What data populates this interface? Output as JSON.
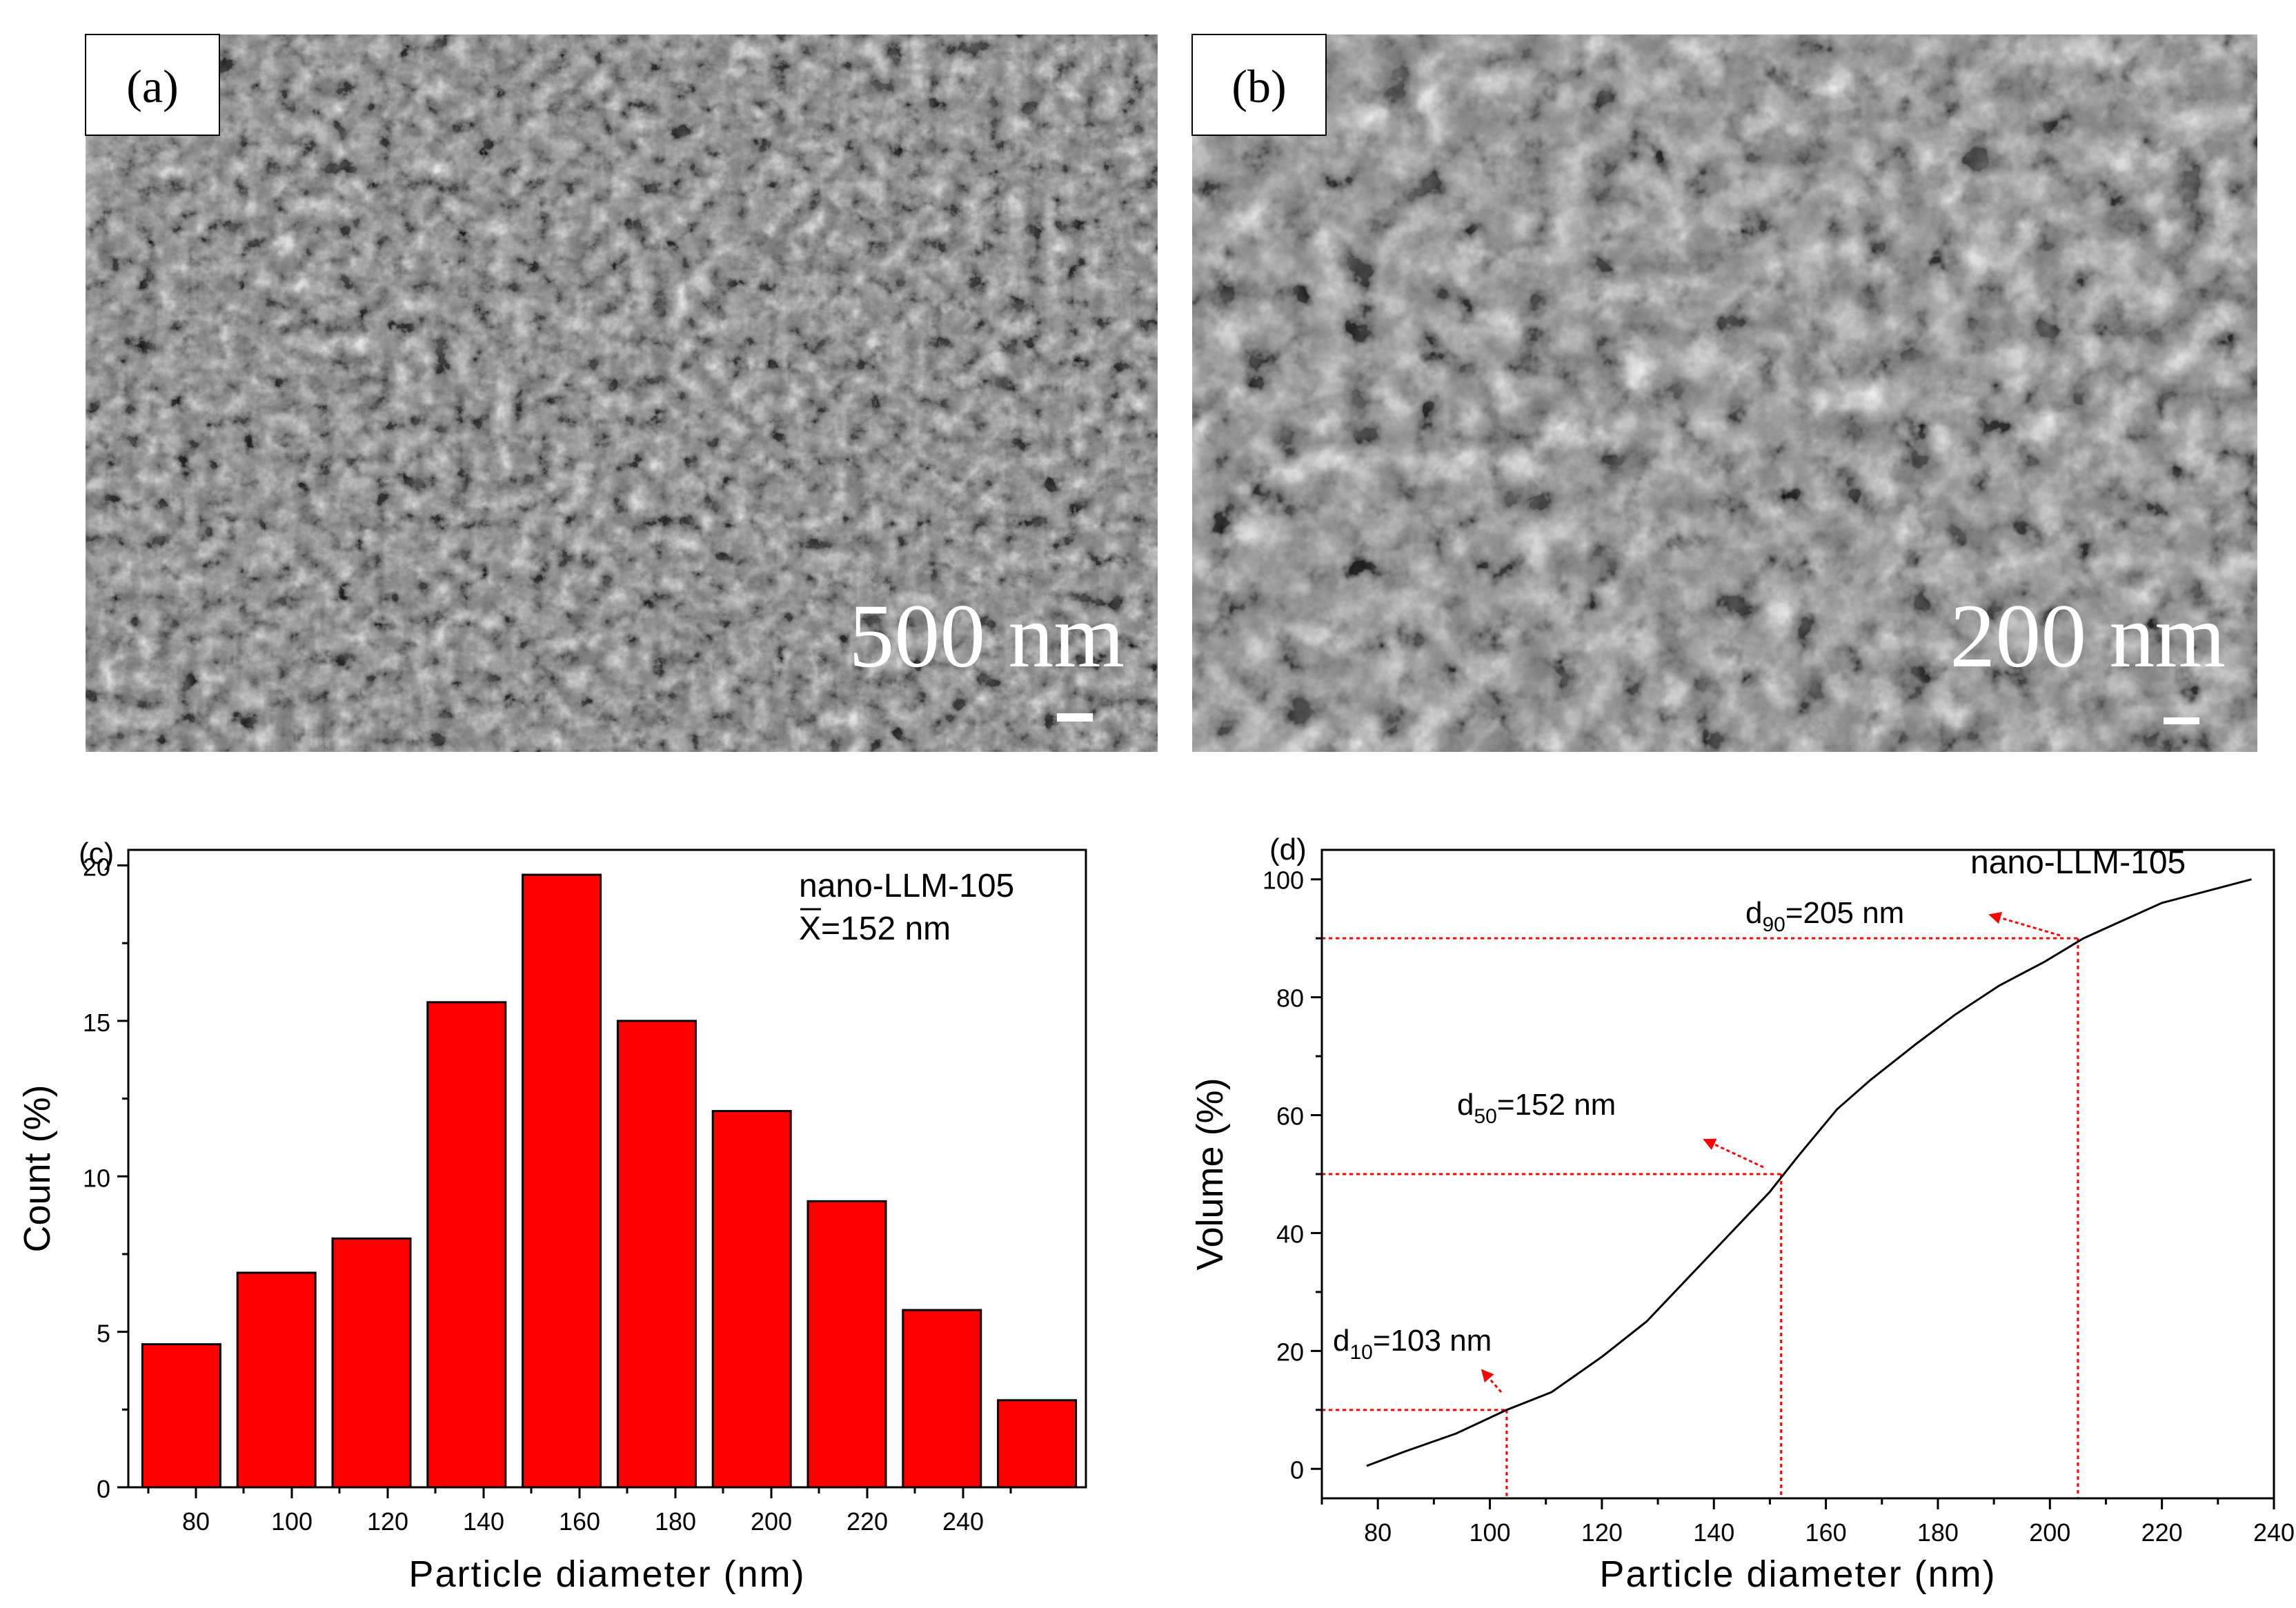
{
  "panels": {
    "a": {
      "label": "(a)",
      "scale_text": "500 nm"
    },
    "b": {
      "label": "(b)",
      "scale_text": "200 nm"
    },
    "c": {
      "label": "(c)"
    },
    "d": {
      "label": "(d)"
    }
  },
  "chart_data": [
    {
      "type": "bar",
      "panel": "c",
      "xlabel": "Particle diameter (nm)",
      "ylabel": "Count (%)",
      "xlim": [
        68,
        242
      ],
      "ylim": [
        0,
        20.5
      ],
      "xticks": [
        80,
        100,
        120,
        140,
        160,
        180,
        200,
        220,
        240
      ],
      "yticks": [
        0,
        5,
        10,
        15,
        20
      ],
      "bin_width": 16,
      "categories": [
        80,
        100,
        120,
        140,
        160,
        180,
        200,
        220,
        240
      ],
      "bars": [
        {
          "center": 76,
          "value": 4.6
        },
        {
          "center": 96,
          "value": 6.9
        },
        {
          "center": 116,
          "value": 8.0
        },
        {
          "center": 136,
          "value": 15.6
        },
        {
          "center": 156,
          "value": 19.7
        },
        {
          "center": 176,
          "value": 15.0
        },
        {
          "center": 196,
          "value": 12.1
        },
        {
          "center": 216,
          "value": 9.2
        },
        {
          "center": 236,
          "value": 5.7
        },
        {
          "center": 256,
          "value": 2.8
        }
      ],
      "bar_color": "#ff0000",
      "legend_lines": [
        "nano-LLM-105",
        "X=152 nm"
      ],
      "grid": false
    },
    {
      "type": "line",
      "panel": "d",
      "xlabel": "Particle diameter (nm)",
      "ylabel": "Volume (%)",
      "xlim": [
        70,
        240
      ],
      "ylim": [
        -5,
        105
      ],
      "xticks": [
        80,
        100,
        120,
        140,
        160,
        180,
        200,
        220,
        240
      ],
      "yticks": [
        0,
        20,
        40,
        60,
        80,
        100
      ],
      "series": [
        {
          "name": "nano-LLM-105",
          "x": [
            78,
            85,
            94,
            103,
            111,
            120,
            128,
            135,
            143,
            150,
            155,
            162,
            168,
            176,
            183,
            191,
            199,
            206,
            213,
            220,
            228,
            236
          ],
          "y": [
            0.5,
            3,
            6,
            10,
            13,
            19,
            25,
            32,
            40,
            47,
            53,
            61,
            66,
            72,
            77,
            82,
            86,
            90,
            93,
            96,
            98,
            100
          ]
        }
      ],
      "annotations": [
        {
          "name": "d10",
          "label_main": "d",
          "label_sub": "10",
          "label_rest": "=103 nm",
          "x": 103,
          "y": 10
        },
        {
          "name": "d50",
          "label_main": "d",
          "label_sub": "50",
          "label_rest": "=152 nm",
          "x": 152,
          "y": 50
        },
        {
          "name": "d90",
          "label_main": "d",
          "label_sub": "90",
          "label_rest": "=205 nm",
          "x": 205,
          "y": 90
        }
      ],
      "legend_text": "nano-LLM-105",
      "guide_color": "#ff0000",
      "grid": false
    }
  ]
}
